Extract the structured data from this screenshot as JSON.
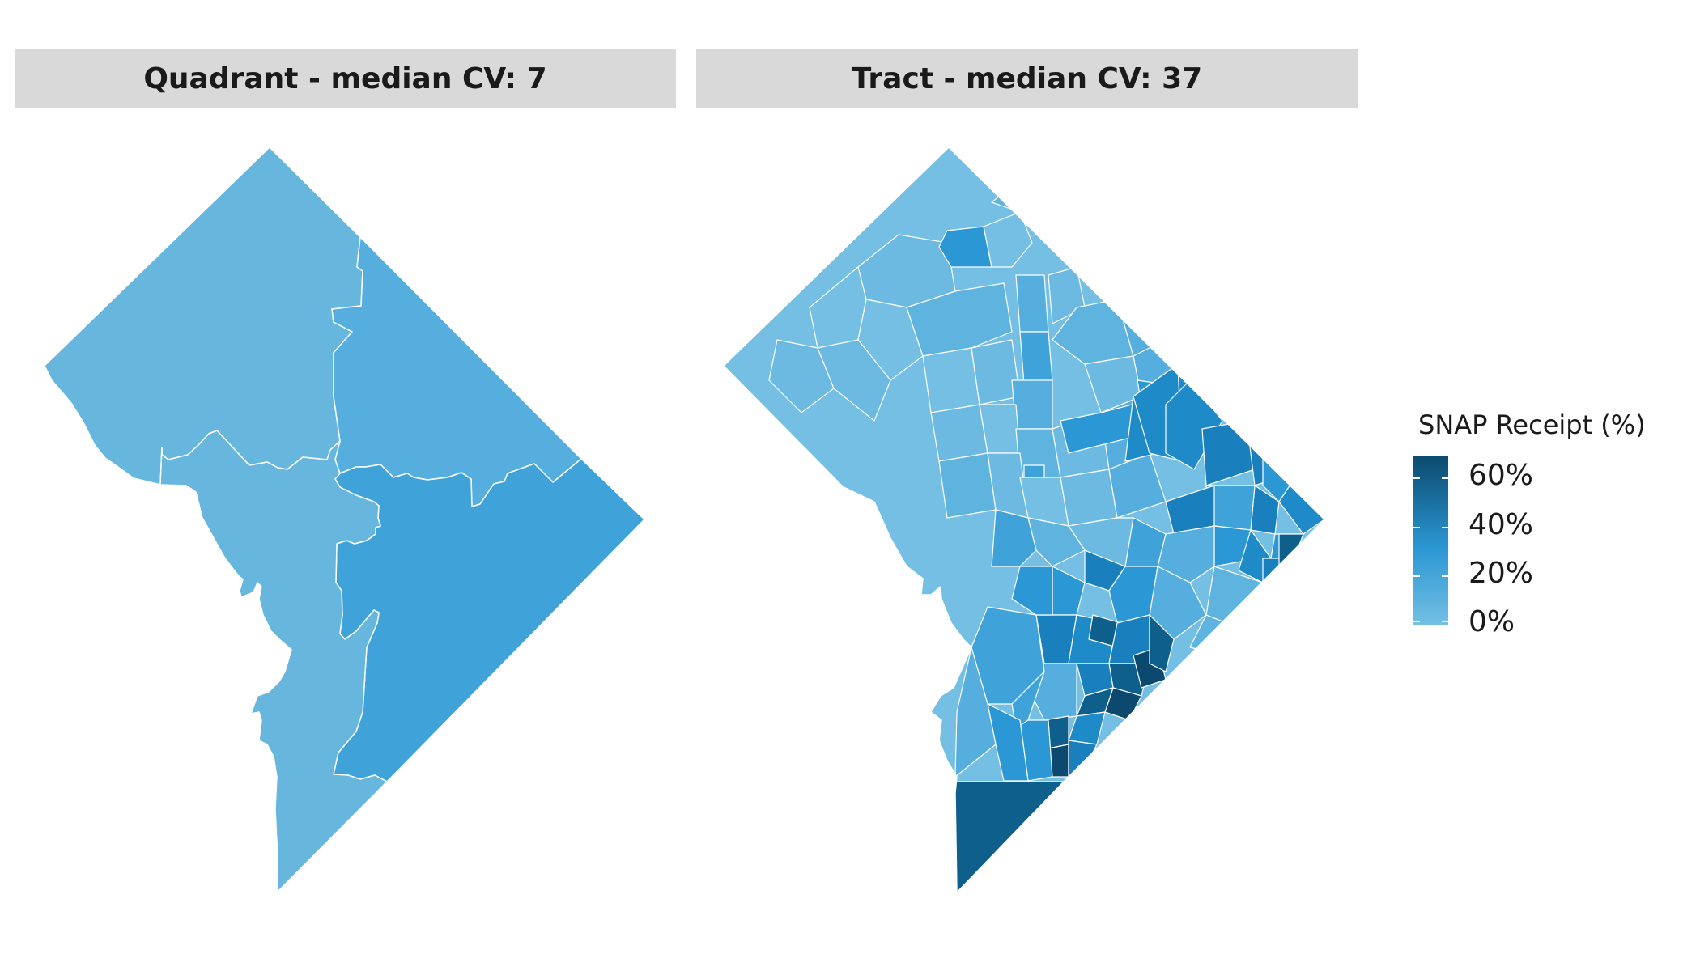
{
  "panels": [
    {
      "title": "Quadrant - median CV: 7"
    },
    {
      "title": "Tract - median CV: 37"
    }
  ],
  "legend": {
    "title": "SNAP Receipt (%)",
    "labels": [
      "60%",
      "40%",
      "20%",
      "0%"
    ],
    "values": [
      60,
      40,
      20,
      0
    ],
    "color_low": "#74bfe3",
    "color_mid": "#2b97d4",
    "color_high": "#0b4a6e"
  },
  "colors": {
    "strip_bg": "#d9d9d9",
    "border": "#ffffff",
    "quadrant_nw": "#66b6de",
    "quadrant_ne": "#55aedd",
    "quadrant_se": "#3fa2d8",
    "quadrant_sw": "#66b6de"
  },
  "quadrant_values": {
    "NW": 10,
    "NE": 15,
    "SE": 24,
    "SW": 10
  }
}
